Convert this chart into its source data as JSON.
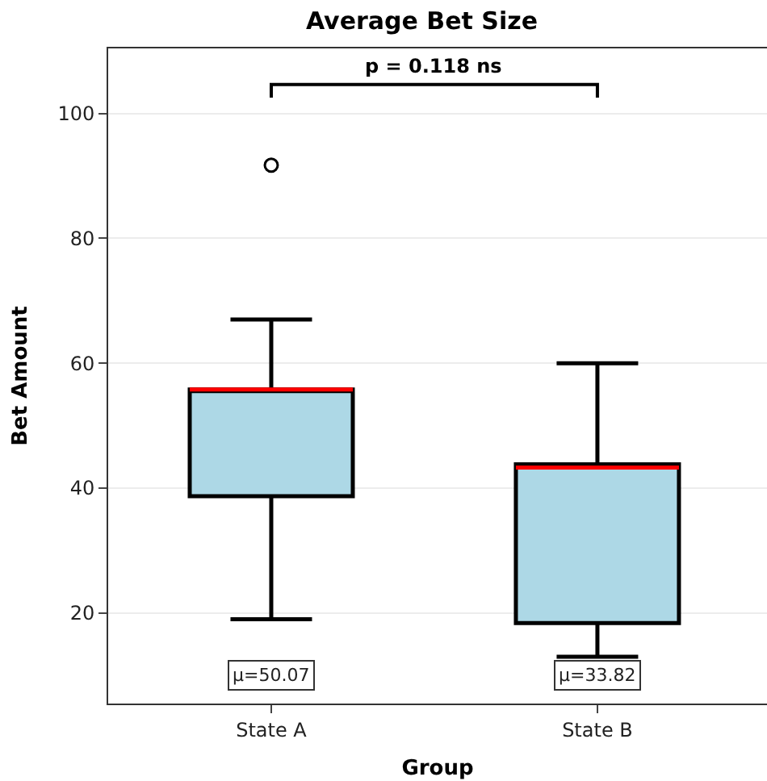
{
  "chart_data": {
    "type": "box",
    "title": "Average Bet Size",
    "xlabel": "Group",
    "ylabel": "Bet Amount",
    "categories": [
      "State A",
      "State B"
    ],
    "boxes": [
      {
        "low": 19,
        "q1": 38.7,
        "median": 55.8,
        "q3": 55.8,
        "high": 67,
        "outliers": [
          91.7
        ]
      },
      {
        "low": 13,
        "q1": 18.4,
        "median": 43.3,
        "q3": 43.8,
        "high": 60
      }
    ],
    "color": "#add8e6",
    "ylim": [
      5.5,
      110.4
    ],
    "yticks": [
      20,
      40,
      60,
      80,
      100
    ],
    "grid": "y",
    "annotations": [
      "p = 0.118 ns",
      "μ=50.07",
      "μ=33.82"
    ]
  }
}
